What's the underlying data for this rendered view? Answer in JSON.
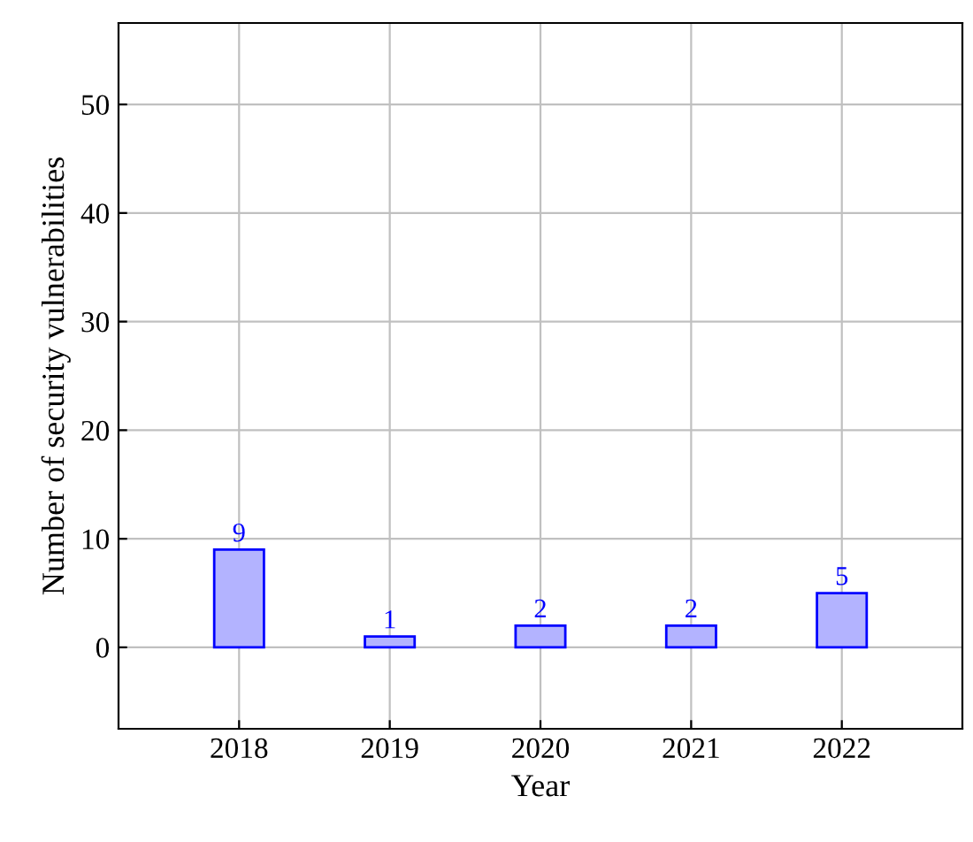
{
  "chart_data": {
    "type": "bar",
    "xlabel": "Year",
    "ylabel": "Number of security vulnerabilities",
    "x": [
      2018,
      2019,
      2020,
      2021,
      2022
    ],
    "values": [
      9,
      1,
      2,
      2,
      5
    ],
    "color": "#b3b3ff",
    "xlim": [
      2017.2,
      2022.8
    ],
    "xticks": [
      2018,
      2019,
      2020,
      2021,
      2022
    ],
    "ylim": [
      -7.5,
      57.5
    ],
    "yticks": [
      0,
      10,
      20,
      30,
      40,
      50
    ],
    "grid": true,
    "data_labels": true
  }
}
